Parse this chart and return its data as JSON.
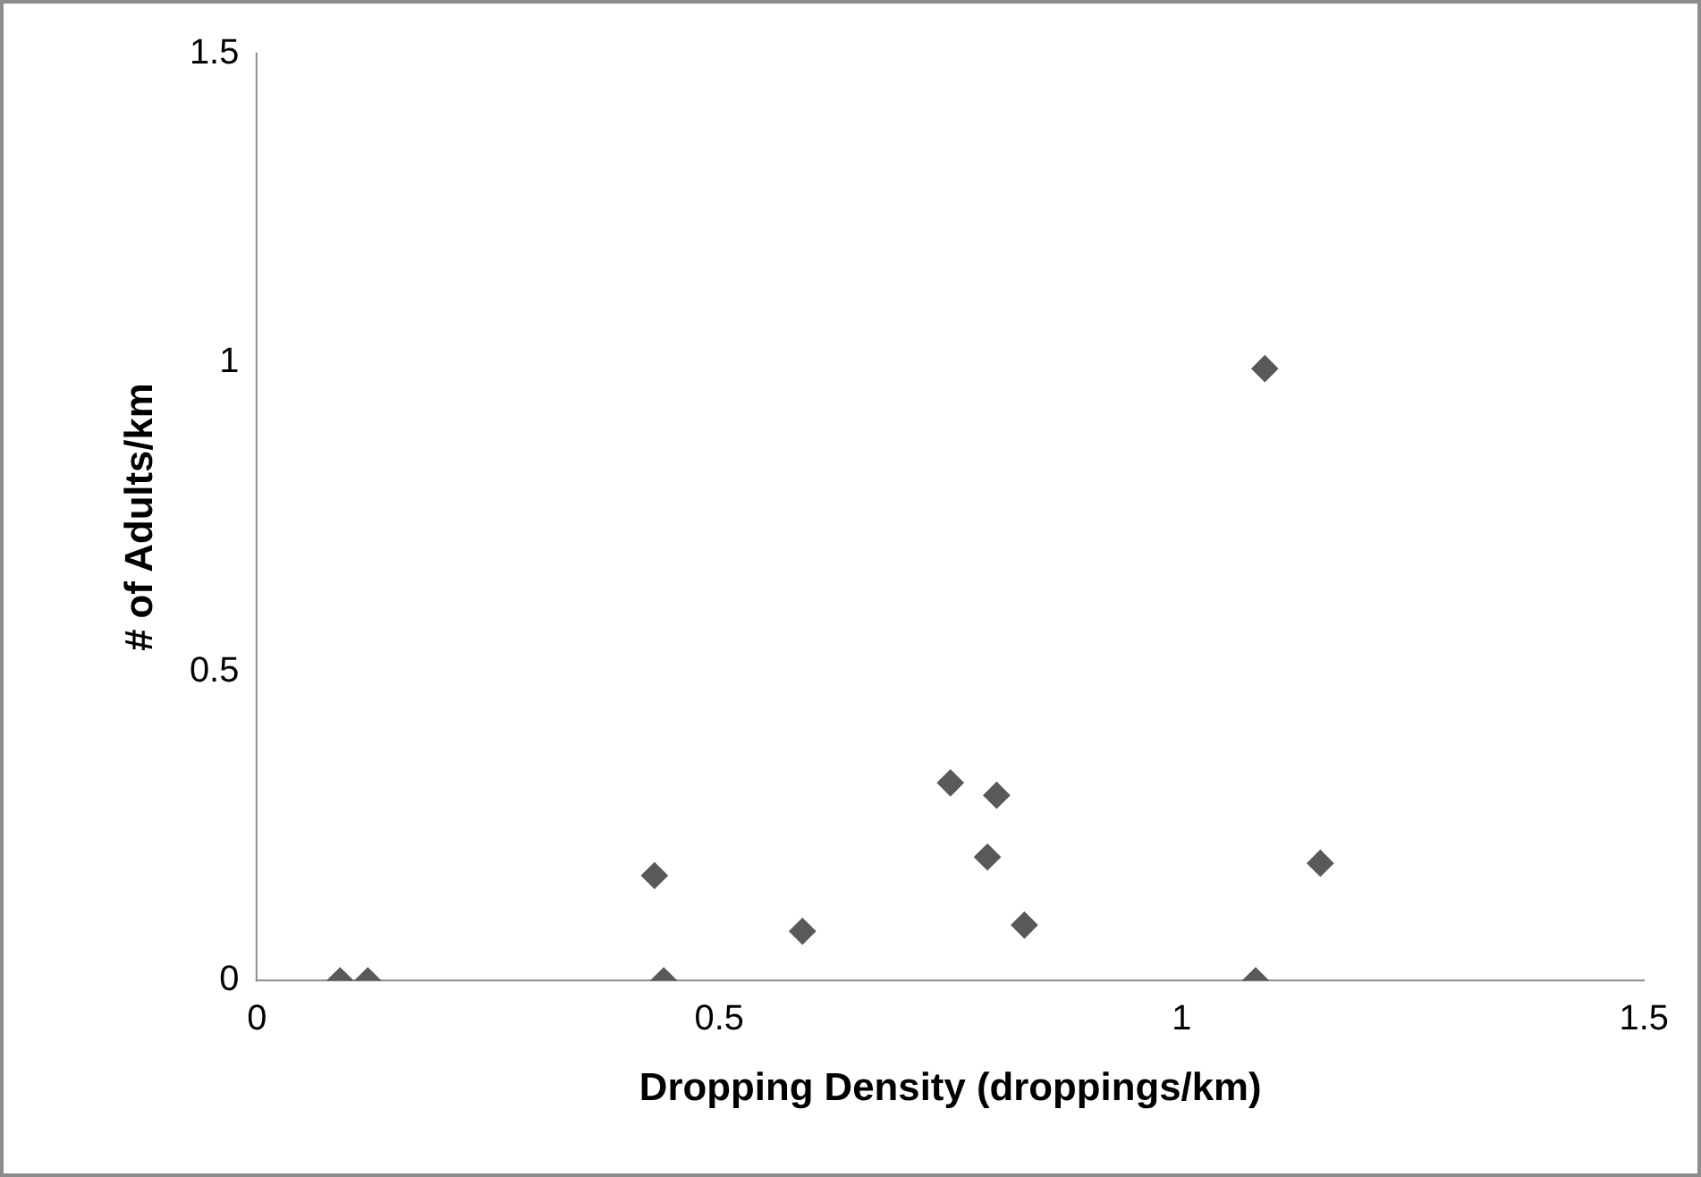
{
  "chart_data": {
    "type": "scatter",
    "xlabel": "Dropping Density (droppings/km)",
    "ylabel": "# of Adults/km",
    "x": [
      0.09,
      0.12,
      0.43,
      0.44,
      0.59,
      0.75,
      0.79,
      0.8,
      0.83,
      1.08,
      1.09,
      1.15
    ],
    "series": [
      {
        "color": "#595959",
        "values": [
          0,
          0,
          0.17,
          0,
          0.08,
          0.32,
          0.2,
          0.3,
          0.09,
          0,
          0.99,
          0.19
        ]
      }
    ],
    "xlim": [
      0,
      1.5
    ],
    "xticks": [
      0,
      0.5,
      1,
      1.5
    ],
    "ylim": [
      0,
      1.5
    ],
    "yticks": [
      0,
      0.5,
      1,
      1.5
    ],
    "grid": false,
    "legend": false,
    "marker": "diamond"
  }
}
